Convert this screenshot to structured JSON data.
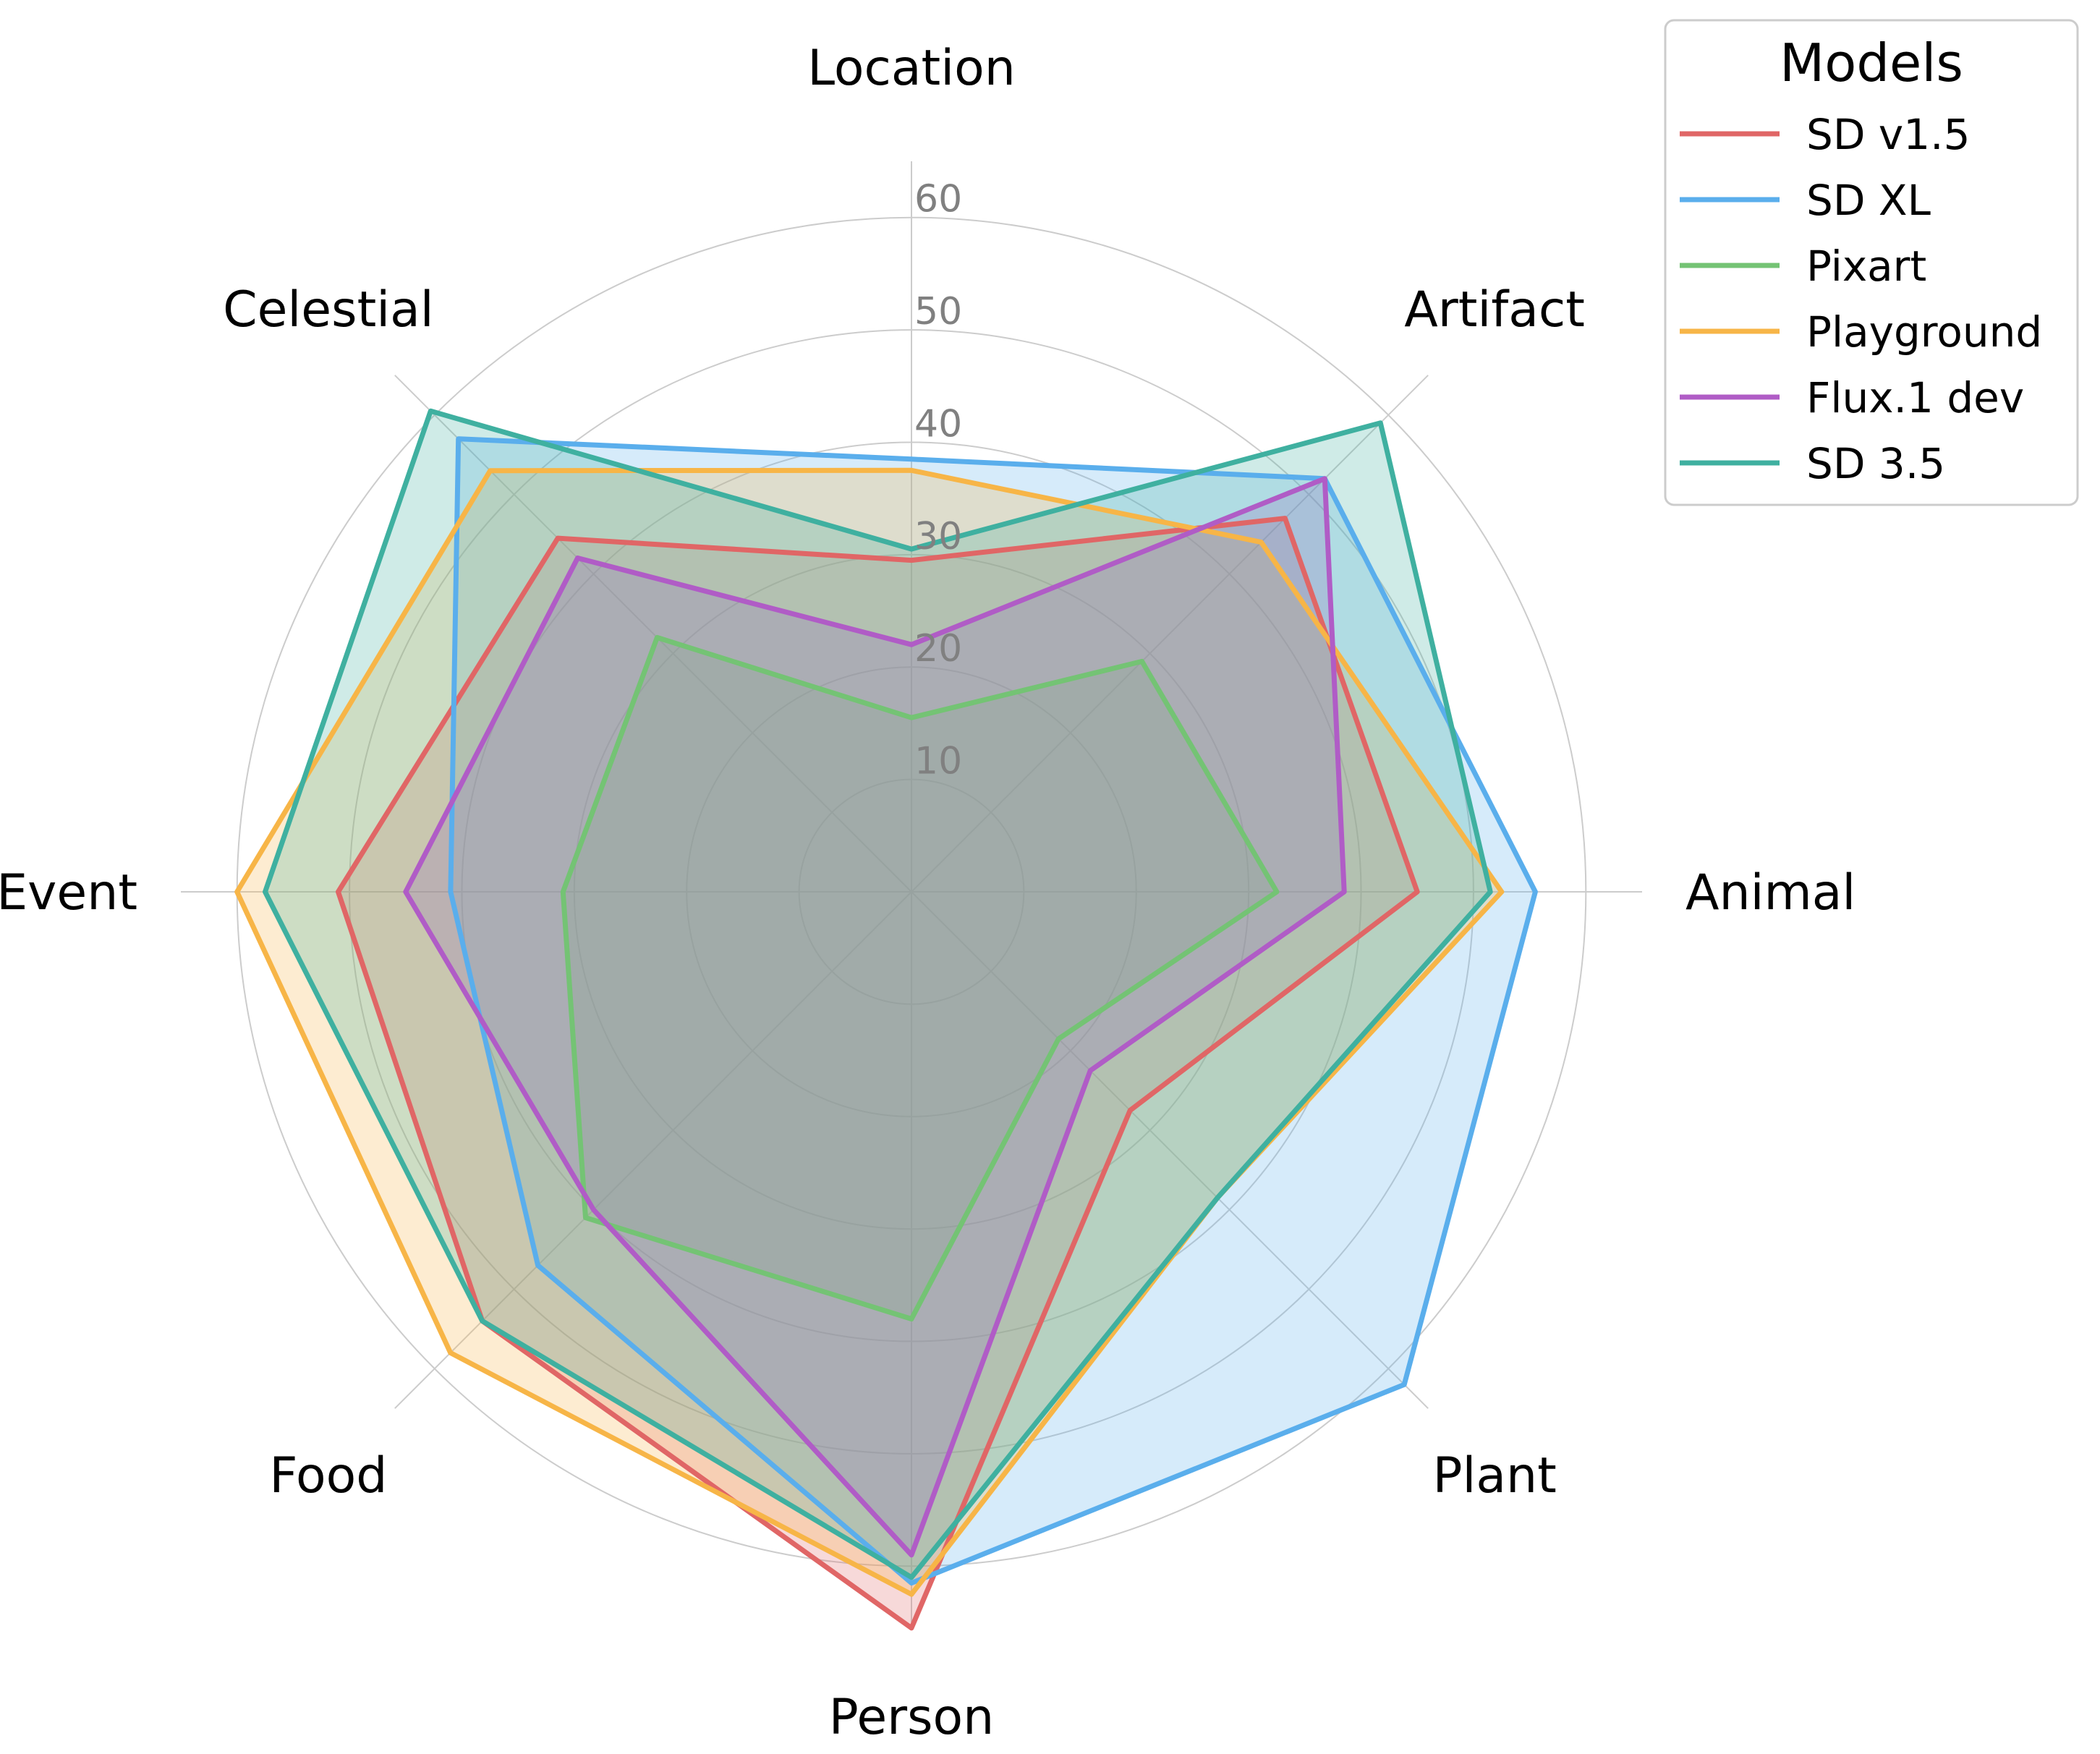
{
  "chart_data": {
    "type": "radar",
    "axes": [
      "Location",
      "Artifact",
      "Animal",
      "Plant",
      "Person",
      "Food",
      "Event",
      "Celestial"
    ],
    "rlim": [
      0,
      65
    ],
    "rticks": [
      10,
      20,
      30,
      40,
      50,
      60
    ],
    "rtick_labels": [
      "10",
      "20",
      "30",
      "40",
      "50",
      "60"
    ],
    "legend_title": "Models",
    "legend_position": "top-right",
    "series": [
      {
        "name": "SD v1.5",
        "color": "#e06666",
        "values": [
          29.5,
          47.0,
          45.0,
          27.5,
          65.5,
          54.0,
          51.0,
          44.5
        ]
      },
      {
        "name": "SD XL",
        "color": "#5aaeec",
        "values": [
          38.5,
          52.0,
          55.5,
          62.0,
          61.5,
          47.0,
          41.0,
          57.0
        ]
      },
      {
        "name": "Pixart",
        "color": "#74c374",
        "values": [
          15.5,
          29.0,
          32.5,
          18.5,
          38.0,
          41.0,
          31.0,
          32.0
        ]
      },
      {
        "name": "Playground",
        "color": "#f7b547",
        "values": [
          37.5,
          44.0,
          52.5,
          38.5,
          62.5,
          58.0,
          60.0,
          53.0
        ]
      },
      {
        "name": "Flux.1 dev",
        "color": "#b05cc6",
        "values": [
          22.0,
          52.0,
          38.5,
          22.5,
          59.0,
          40.0,
          45.0,
          42.0
        ]
      },
      {
        "name": "SD 3.5",
        "color": "#3fb0a0",
        "values": [
          30.5,
          59.0,
          51.5,
          38.5,
          61.0,
          54.0,
          57.5,
          60.5
        ]
      }
    ]
  }
}
